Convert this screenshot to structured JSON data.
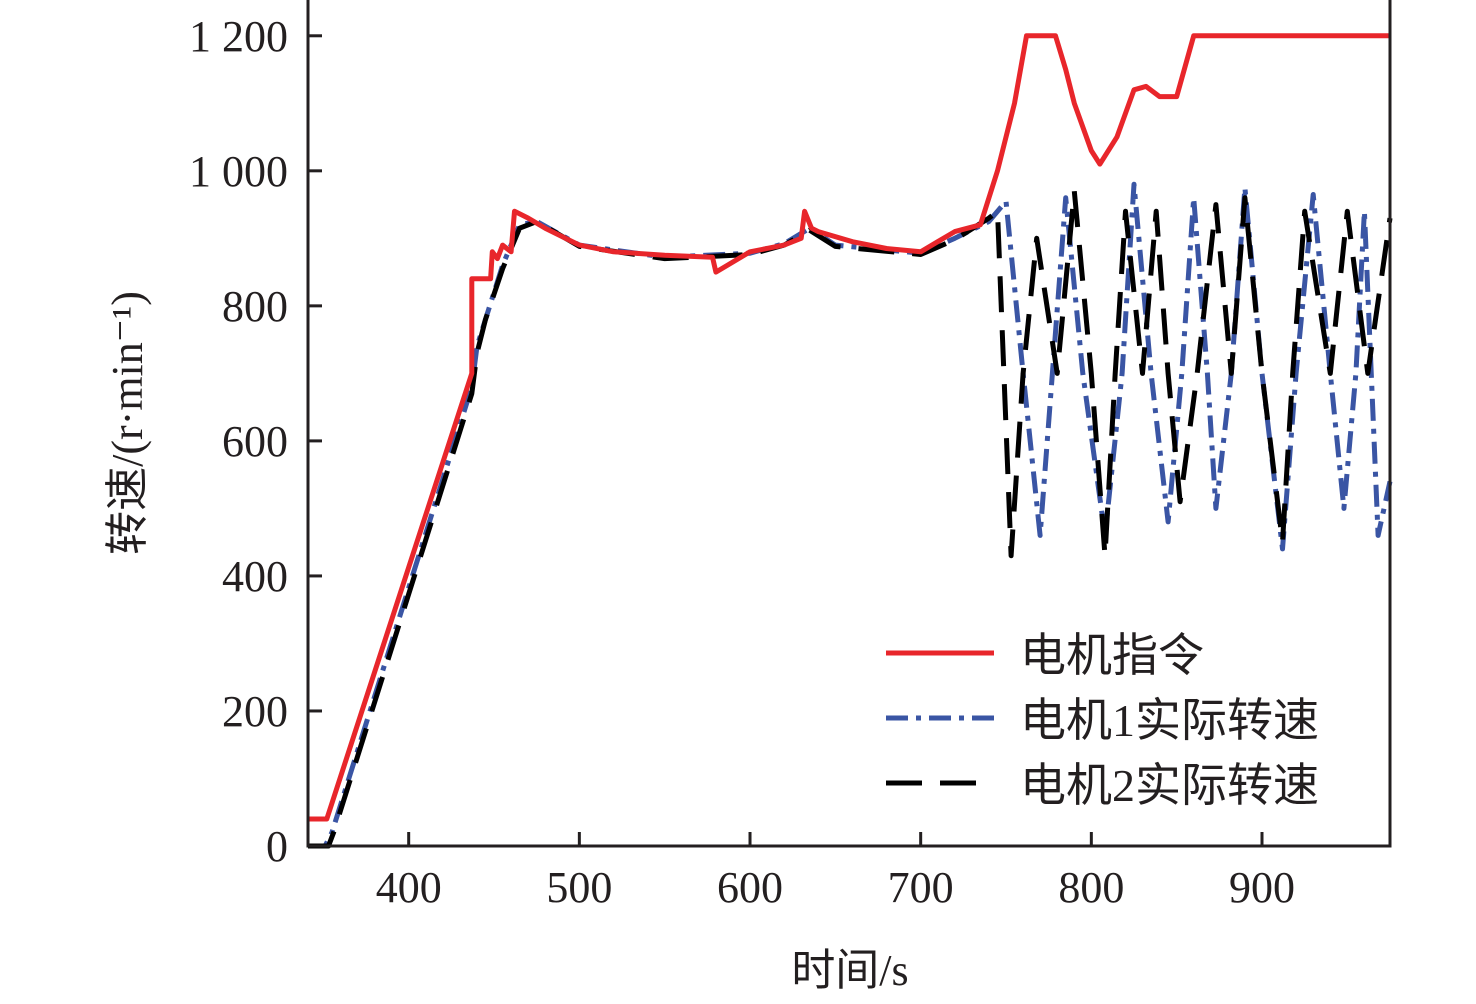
{
  "chart_data": {
    "type": "line",
    "title": "",
    "xlabel": "时间/s",
    "ylabel": "转速/(r·min⁻¹)",
    "xlim": [
      341,
      975
    ],
    "ylim": [
      0,
      1253
    ],
    "xticks": [
      400,
      500,
      600,
      700,
      800,
      900
    ],
    "xtick_labels": [
      "400",
      "500",
      "600",
      "700",
      "800",
      "900"
    ],
    "yticks": [
      0,
      200,
      400,
      600,
      800,
      1000,
      1200
    ],
    "ytick_labels": [
      "0",
      "200",
      "400",
      "600",
      "800",
      "1 000",
      "1 200"
    ],
    "grid": false,
    "legend_position": "bottom-right",
    "series": [
      {
        "name": "电机指令",
        "color": "#e8262b",
        "style": "solid",
        "x": [
          341,
          352,
          437,
          437,
          448,
          449,
          452,
          455,
          460,
          462,
          470,
          480,
          500,
          520,
          550,
          578,
          580,
          600,
          620,
          630,
          632,
          636,
          640,
          660,
          680,
          700,
          710,
          720,
          735,
          745,
          755,
          762,
          779,
          785,
          790,
          800,
          805,
          815,
          825,
          832,
          840,
          850,
          860,
          975
        ],
        "y": [
          40,
          40,
          700,
          840,
          840,
          880,
          870,
          890,
          880,
          940,
          930,
          915,
          890,
          880,
          875,
          872,
          850,
          880,
          890,
          900,
          940,
          915,
          910,
          895,
          885,
          880,
          895,
          910,
          920,
          1000,
          1100,
          1200,
          1200,
          1150,
          1100,
          1030,
          1010,
          1050,
          1120,
          1125,
          1110,
          1110,
          1200,
          1200
        ]
      },
      {
        "name": "电机1实际转速",
        "color": "#3a55a4",
        "style": "dashdot",
        "x": [
          341,
          351,
          355,
          437,
          440,
          445,
          455,
          465,
          475,
          500,
          550,
          600,
          620,
          635,
          650,
          700,
          720,
          740,
          750,
          760,
          770,
          785,
          795,
          808,
          818,
          825,
          835,
          845,
          853,
          860,
          868,
          873,
          882,
          890,
          900,
          912,
          920,
          930,
          940,
          948,
          955,
          960,
          968,
          975
        ],
        "y": [
          0,
          0,
          20,
          680,
          740,
          780,
          860,
          920,
          925,
          890,
          872,
          878,
          892,
          915,
          890,
          878,
          900,
          925,
          955,
          700,
          460,
          960,
          700,
          460,
          700,
          980,
          700,
          480,
          700,
          960,
          700,
          500,
          700,
          975,
          700,
          440,
          700,
          965,
          700,
          500,
          700,
          940,
          460,
          540
        ]
      },
      {
        "name": "电机2实际转速",
        "color": "#000000",
        "style": "dashed",
        "x": [
          341,
          353,
          356,
          437,
          440,
          445,
          455,
          465,
          475,
          500,
          550,
          600,
          620,
          635,
          650,
          700,
          720,
          740,
          745,
          753,
          760,
          768,
          780,
          790,
          800,
          808,
          814,
          820,
          830,
          838,
          845,
          852,
          862,
          873,
          882,
          890,
          900,
          912,
          918,
          925,
          940,
          950,
          962,
          975
        ],
        "y": [
          0,
          0,
          20,
          670,
          730,
          780,
          855,
          915,
          925,
          888,
          870,
          876,
          890,
          912,
          888,
          876,
          898,
          930,
          940,
          430,
          700,
          900,
          700,
          970,
          700,
          430,
          700,
          940,
          700,
          940,
          700,
          510,
          700,
          950,
          700,
          960,
          700,
          450,
          700,
          940,
          700,
          940,
          700,
          930
        ]
      }
    ]
  }
}
